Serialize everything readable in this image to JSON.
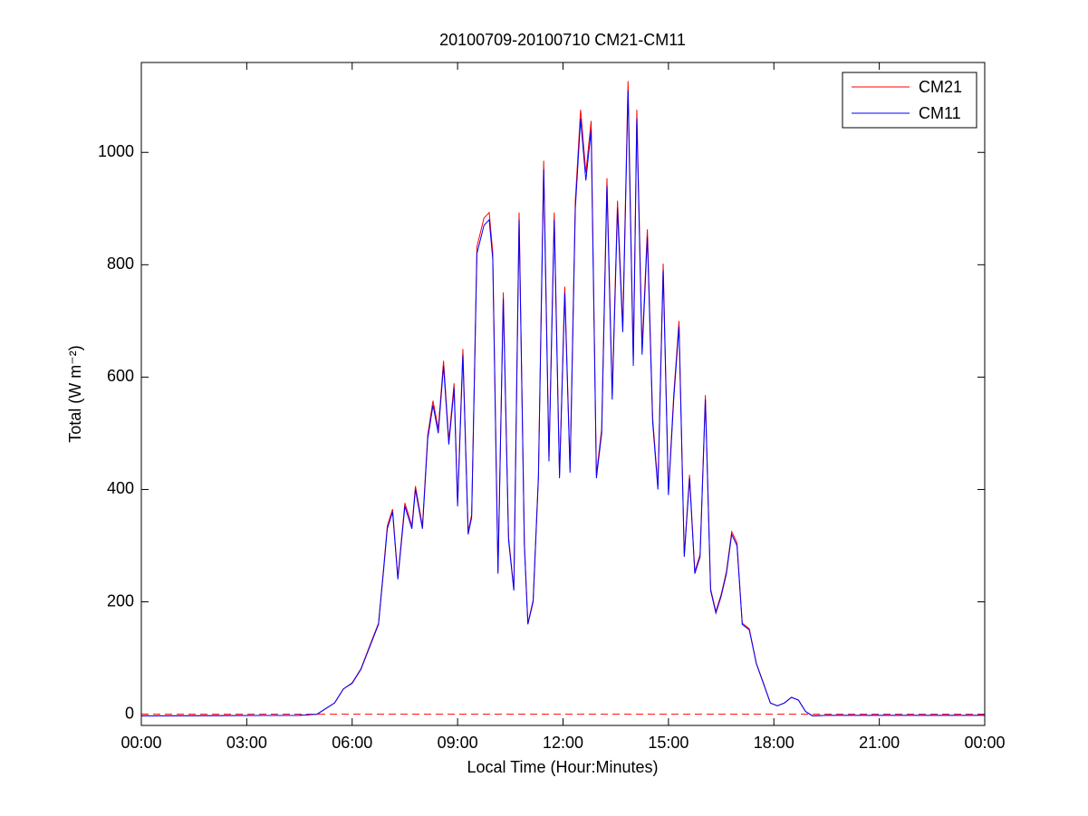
{
  "chart_data": {
    "type": "line",
    "title": "20100709-20100710 CM21-CM11",
    "x_label": "Local Time (Hour:Minutes)",
    "y_label": "Total (W m⁻²)",
    "x": [
      0,
      4.5,
      5,
      5.5,
      5.75,
      6,
      6.25,
      6.5,
      6.75,
      6.9,
      7,
      7.15,
      7.3,
      7.5,
      7.7,
      7.8,
      8,
      8.15,
      8.3,
      8.45,
      8.6,
      8.75,
      8.9,
      9,
      9.15,
      9.3,
      9.4,
      9.55,
      9.75,
      9.9,
      10,
      10.15,
      10.3,
      10.45,
      10.6,
      10.75,
      10.9,
      11,
      11.15,
      11.3,
      11.45,
      11.6,
      11.75,
      11.9,
      12.05,
      12.2,
      12.35,
      12.5,
      12.65,
      12.8,
      12.95,
      13.1,
      13.25,
      13.4,
      13.55,
      13.7,
      13.85,
      14,
      14.1,
      14.25,
      14.4,
      14.55,
      14.7,
      14.85,
      15,
      15.15,
      15.3,
      15.45,
      15.6,
      15.75,
      15.9,
      16.05,
      16.2,
      16.35,
      16.5,
      16.65,
      16.8,
      16.95,
      17.1,
      17.3,
      17.5,
      17.7,
      17.9,
      18.1,
      18.3,
      18.5,
      18.7,
      18.9,
      19.1,
      19.5,
      24
    ],
    "series": [
      {
        "name": "CM21",
        "color": "#ff0000",
        "values": [
          -3,
          -2,
          0,
          20,
          45,
          56,
          81,
          122,
          162,
          264,
          335,
          365,
          244,
          376,
          335,
          406,
          335,
          497,
          558,
          508,
          629,
          487,
          589,
          376,
          650,
          325,
          355,
          832,
          883,
          893,
          822,
          254,
          751,
          315,
          223,
          893,
          305,
          162,
          203,
          426,
          985,
          457,
          893,
          426,
          761,
          436,
          914,
          1076,
          964,
          1056,
          426,
          508,
          954,
          568,
          914,
          690,
          1127,
          629,
          1076,
          650,
          863,
          528,
          406,
          802,
          396,
          568,
          700,
          284,
          426,
          254,
          284,
          568,
          223,
          183,
          213,
          254,
          325,
          305,
          162,
          152,
          91,
          56,
          20,
          15,
          20,
          30,
          25,
          5,
          -3,
          -2,
          -2
        ]
      },
      {
        "name": "CM11",
        "color": "#0000ff",
        "values": [
          -3,
          -2,
          0,
          20,
          45,
          55,
          80,
          120,
          160,
          260,
          330,
          360,
          240,
          370,
          330,
          400,
          330,
          490,
          550,
          500,
          620,
          480,
          580,
          370,
          640,
          320,
          350,
          820,
          870,
          880,
          810,
          250,
          740,
          310,
          220,
          880,
          300,
          160,
          200,
          420,
          970,
          450,
          880,
          420,
          750,
          430,
          900,
          1060,
          950,
          1040,
          420,
          500,
          940,
          560,
          900,
          680,
          1110,
          620,
          1060,
          640,
          850,
          520,
          400,
          790,
          390,
          560,
          690,
          280,
          420,
          250,
          280,
          560,
          220,
          180,
          210,
          250,
          320,
          300,
          160,
          150,
          90,
          55,
          20,
          15,
          20,
          30,
          25,
          5,
          -3,
          -2,
          -2
        ]
      }
    ],
    "reference_line": {
      "value": 0,
      "color": "#ff0000"
    },
    "xlim": [
      0,
      24
    ],
    "xticks": [
      {
        "value": 0,
        "label": "00:00"
      },
      {
        "value": 3,
        "label": "03:00"
      },
      {
        "value": 6,
        "label": "06:00"
      },
      {
        "value": 9,
        "label": "09:00"
      },
      {
        "value": 12,
        "label": "12:00"
      },
      {
        "value": 15,
        "label": "15:00"
      },
      {
        "value": 18,
        "label": "18:00"
      },
      {
        "value": 21,
        "label": "21:00"
      },
      {
        "value": 24,
        "label": "00:00"
      }
    ],
    "ylim": [
      -20,
      1160
    ],
    "yticks": [
      0,
      200,
      400,
      600,
      800,
      1000
    ],
    "grid": false,
    "legend": "upper right"
  }
}
